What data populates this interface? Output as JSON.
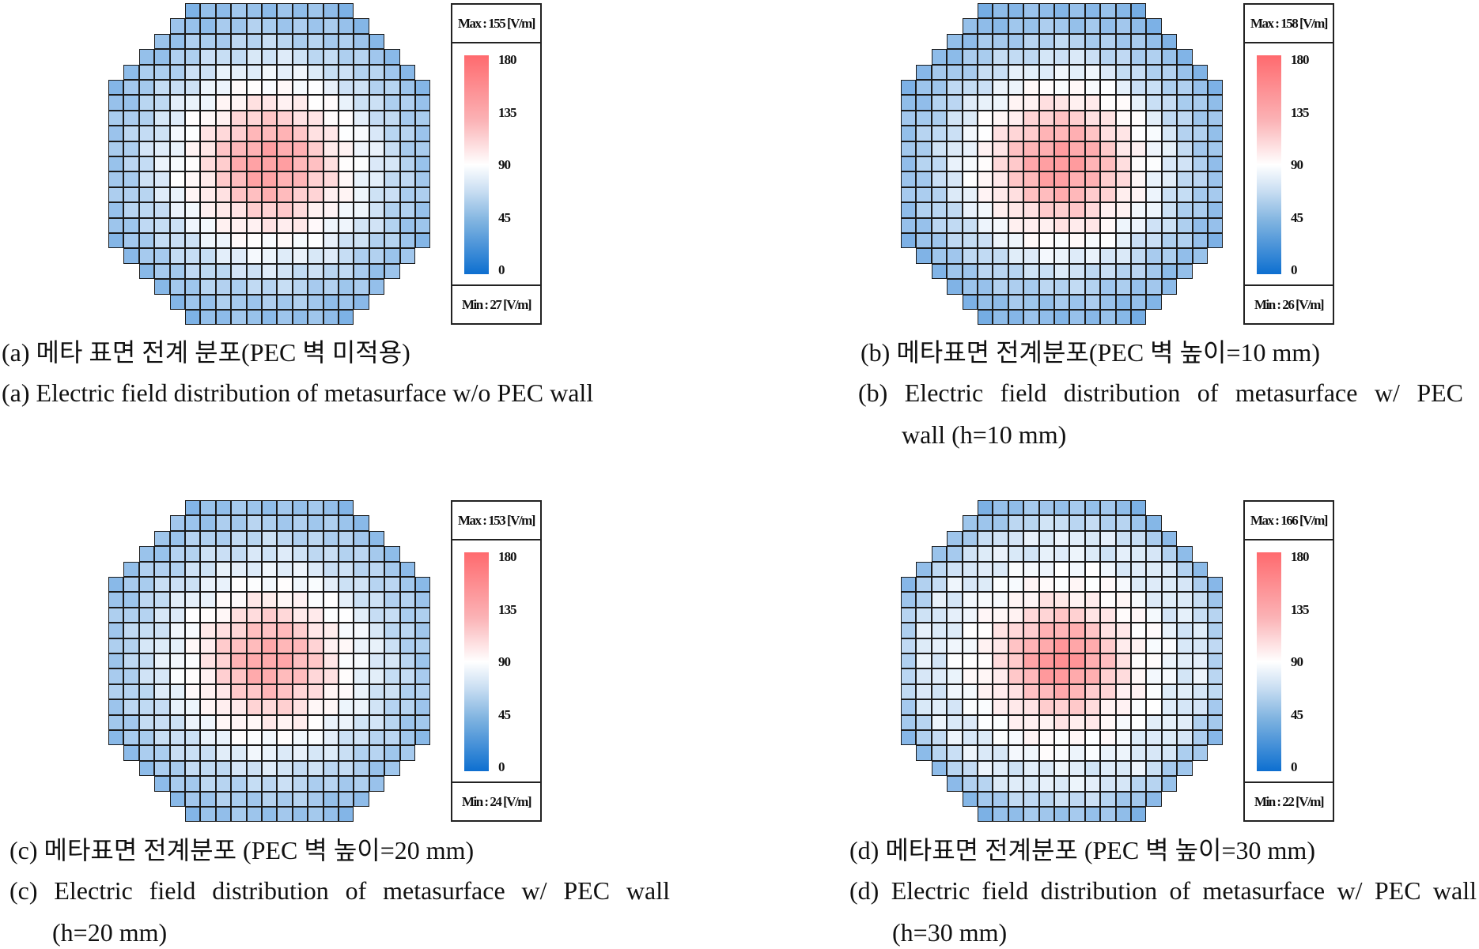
{
  "colorbar": {
    "ticks": [
      "180",
      "135",
      "90",
      "45",
      "0"
    ],
    "range": [
      0,
      180
    ],
    "colors": {
      "low": "#0d6fd0",
      "mid": "#ffffff",
      "high": "#ff6a6e"
    }
  },
  "chart_data": [
    {
      "type": "heatmap",
      "id": "a",
      "grid_size": 21,
      "max_label": "Max : 155 [V/m]",
      "min_label": "Min : 27 [V/m]",
      "max": 155,
      "min": 27,
      "radial_profile": [
        150,
        146,
        136,
        123,
        109,
        96,
        86,
        76,
        66,
        57,
        50,
        44,
        39,
        35,
        31
      ],
      "caption_ko": "(a) 메타 표면 전계 분포(PEC 벽 미적용)",
      "caption_en": "(a) Electric field distribution of metasurface w/o PEC wall",
      "caption_en2": ""
    },
    {
      "type": "heatmap",
      "id": "b",
      "grid_size": 21,
      "max_label": "Max : 158 [V/m]",
      "min_label": "Min : 26 [V/m]",
      "max": 158,
      "min": 26,
      "radial_profile": [
        154,
        148,
        138,
        125,
        110,
        97,
        86,
        75,
        64,
        55,
        47,
        41,
        36,
        32,
        29
      ],
      "caption_ko": "(b) 메타표면 전계분포(PEC 벽 높이=10 mm)",
      "caption_en": "(b) Electric field distribution of metasurface w/ PEC",
      "caption_en2": "wall (h=10 mm)"
    },
    {
      "type": "heatmap",
      "id": "c",
      "grid_size": 21,
      "max_label": "Max : 153 [V/m]",
      "min_label": "Min : 24 [V/m]",
      "max": 153,
      "min": 24,
      "radial_profile": [
        146,
        141,
        131,
        119,
        105,
        93,
        84,
        75,
        67,
        59,
        52,
        46,
        41,
        36,
        32
      ],
      "caption_ko": "(c) 메타표면 전계분포 (PEC 벽 높이=20 mm)",
      "caption_en": "(c) Electric field distribution of metasurface w/ PEC wall",
      "caption_en2": "(h=20 mm)"
    },
    {
      "type": "heatmap",
      "id": "d",
      "grid_size": 21,
      "max_label": "Max : 166 [V/m]",
      "min_label": "Min : 22 [V/m]",
      "max": 166,
      "min": 22,
      "radial_profile": [
        162,
        152,
        140,
        124,
        108,
        96,
        90,
        84,
        72,
        78,
        60,
        46,
        38,
        32,
        27
      ],
      "caption_ko": "(d) 메타표면 전계분포 (PEC 벽 높이=30 mm)",
      "caption_en": "(d) Electric field distribution of metasurface w/ PEC wall",
      "caption_en2": "(h=30 mm)"
    }
  ]
}
